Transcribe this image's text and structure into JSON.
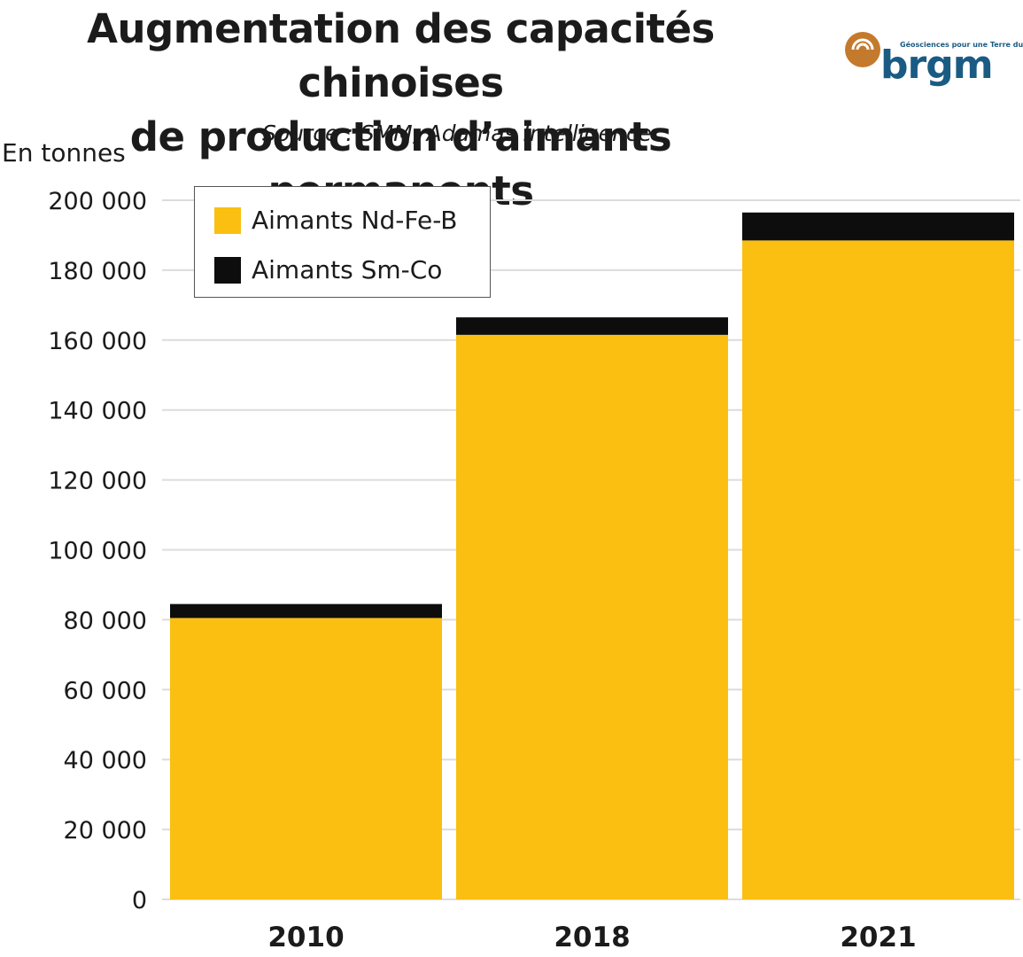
{
  "header": {
    "title_line1": "Augmentation des capacités chinoises",
    "title_line2": "de production d’aimants permanents",
    "source": "Source : SMM, Adamas Intelligence",
    "unit": "En tonnes"
  },
  "logo": {
    "brand": "brgm",
    "tagline": "Géosciences pour une Terre durable",
    "colors": {
      "mark": "#c47a2c",
      "text": "#1a5b84"
    }
  },
  "chart_data": {
    "type": "bar",
    "stacked": true,
    "categories": [
      "2010",
      "2018",
      "2021"
    ],
    "series": [
      {
        "name": "Aimants Nd-Fe-B",
        "color": "#fbbf12",
        "values": [
          80500,
          161500,
          188500
        ]
      },
      {
        "name": "Aimants Sm-Co",
        "color": "#0d0d0d",
        "values": [
          4000,
          5000,
          8000
        ]
      }
    ],
    "ylabel": "En tonnes",
    "ylim": [
      0,
      200000
    ],
    "yticks": [
      {
        "value": 0,
        "label": "0"
      },
      {
        "value": 20000,
        "label": "20 000"
      },
      {
        "value": 40000,
        "label": "40 000"
      },
      {
        "value": 60000,
        "label": "60 000"
      },
      {
        "value": 80000,
        "label": "80 000"
      },
      {
        "value": 100000,
        "label": "100 000"
      },
      {
        "value": 120000,
        "label": "120 000"
      },
      {
        "value": 140000,
        "label": "140 000"
      },
      {
        "value": 160000,
        "label": "160 000"
      },
      {
        "value": 180000,
        "label": "180 000"
      },
      {
        "value": 200000,
        "label": "200 000"
      }
    ],
    "grid": true,
    "legend_position": "top-left"
  }
}
